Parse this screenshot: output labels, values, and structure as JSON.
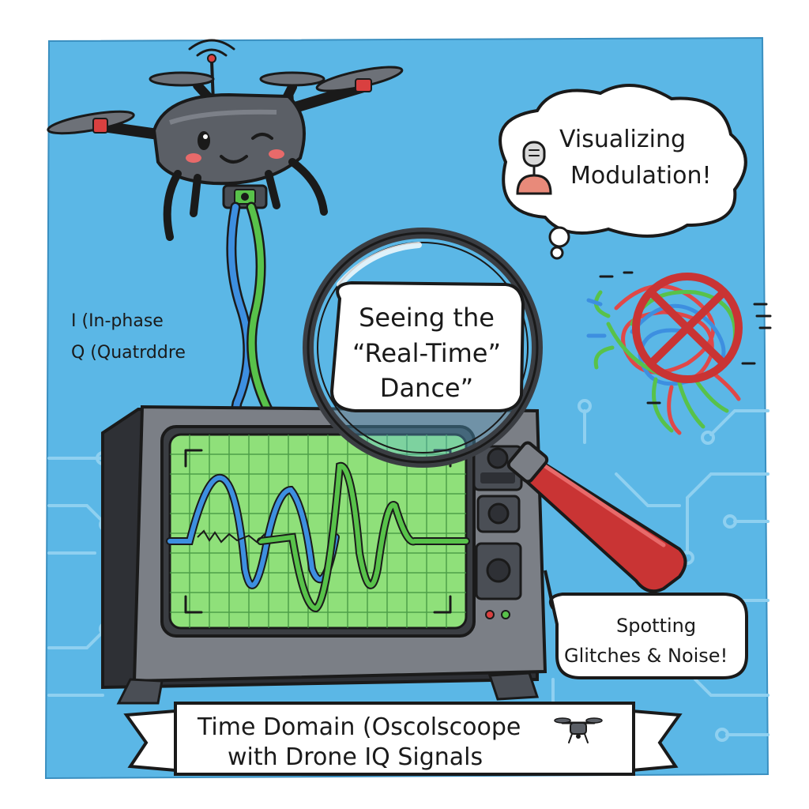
{
  "colors": {
    "background": "#5bb7e6",
    "circuit": "#8fd0f0",
    "screen_green": "#8fe07a",
    "grid_green": "#3d8f3d",
    "wave_blue": "#3d8fe0",
    "wave_green": "#58c24a",
    "drone_gray": "#5b5f66",
    "handle_red": "#c93434",
    "prop_red": "#d94040"
  },
  "labels": {
    "i_label": "I  (In-phase",
    "q_label": "Q  (Quatrddre"
  },
  "bubbles": {
    "thought_line1": "Visualizing",
    "thought_line2": "Modulation!",
    "magnifier_line1": "Seeing the",
    "magnifier_line2": "“Real-Time”",
    "magnifier_line3": "Dance”",
    "speech_line1": "Spotting",
    "speech_line2": "Glitches & Noise!"
  },
  "banner": {
    "line1": "Time Domain (Oscolscoope",
    "line2": "with Drone IQ Signals"
  },
  "icons": {
    "drone": "drone-icon",
    "microphone": "microphone-icon",
    "noise": "tangled-noise-icon",
    "prohibit": "prohibited-icon",
    "magnifier": "magnifying-glass-icon",
    "oscilloscope": "oscilloscope-icon"
  }
}
